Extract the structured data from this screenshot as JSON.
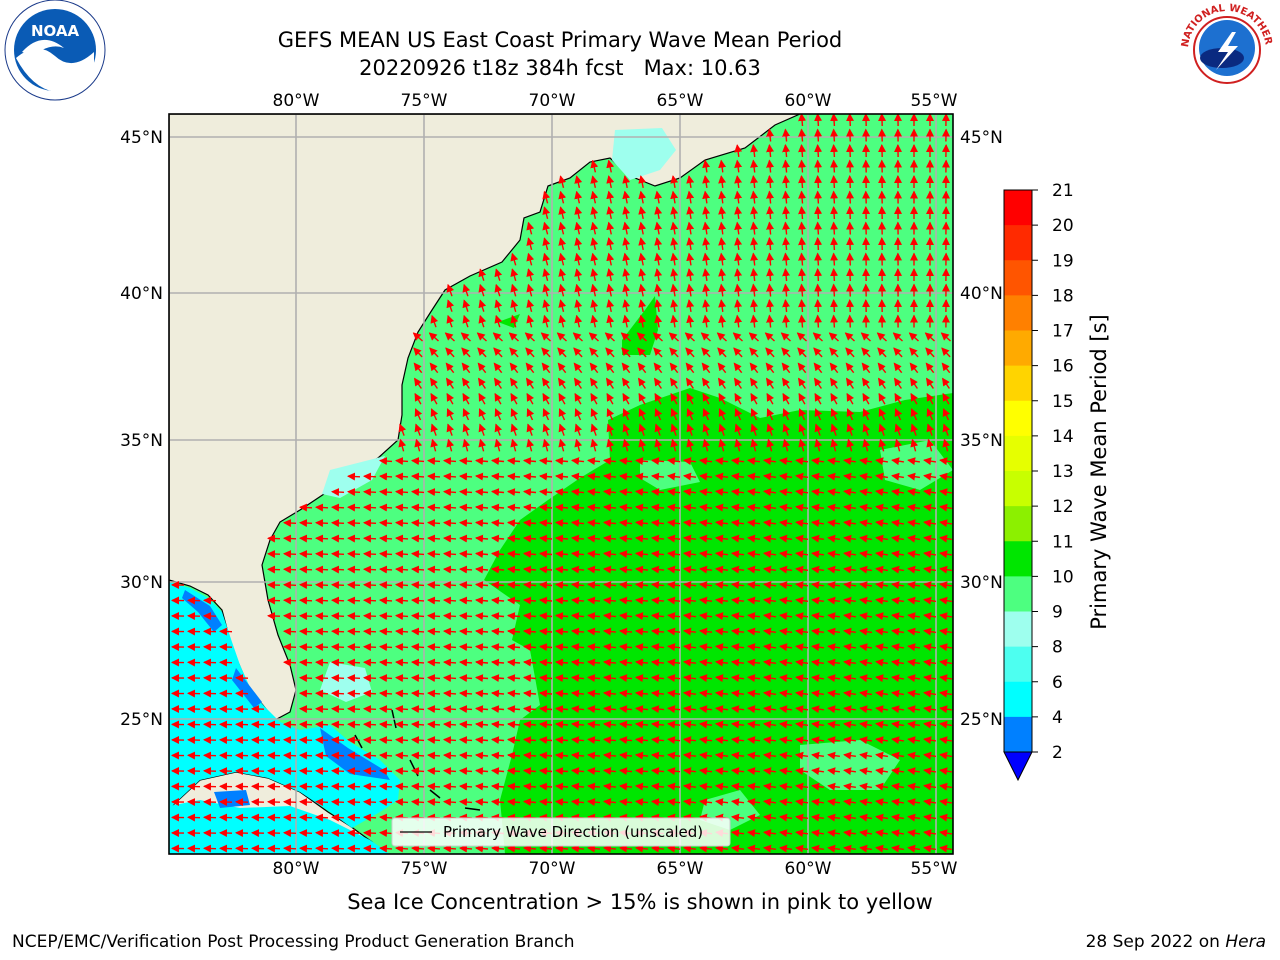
{
  "title": {
    "line1": "GEFS MEAN US East Coast Primary Wave Mean Period",
    "line2": "20220926 t18z 384h fcst   Max: 10.63"
  },
  "map": {
    "lon_labels": [
      "80°W",
      "75°W",
      "70°W",
      "65°W",
      "60°W",
      "55°W"
    ],
    "lat_labels": [
      "45°N",
      "40°N",
      "35°N",
      "30°N",
      "25°N"
    ],
    "legend_label": "Primary Wave Direction (unscaled)",
    "land_color": "#efeddc",
    "grid_color": "#b0b0b0",
    "arrow_color": "#ff0000"
  },
  "colorbar": {
    "label": "Primary Wave Mean Period [s]",
    "ticks": [
      "21",
      "20",
      "19",
      "18",
      "17",
      "16",
      "15",
      "14",
      "13",
      "12",
      "11",
      "10",
      "9",
      "8",
      "6",
      "4",
      "2"
    ],
    "colors": [
      "#ff0000",
      "#ff2a00",
      "#ff5500",
      "#ff8000",
      "#ffaa00",
      "#ffd400",
      "#ffff00",
      "#e6ff00",
      "#c8ff00",
      "#8cf000",
      "#00e600",
      "#4dff80",
      "#9effee",
      "#4dfff0",
      "#00ffff",
      "#0080ff",
      "#0000ff"
    ]
  },
  "caption": "Sea Ice Concentration > 15% is shown in pink to yellow",
  "footer": {
    "left": "NCEP/EMC/Verification Post Processing Product Generation Branch",
    "right_date": "28 Sep 2022 on ",
    "right_host": "Hera"
  },
  "logos": {
    "noaa": "NOAA",
    "nws_ring": "NATIONAL WEATHER SERVICE"
  }
}
